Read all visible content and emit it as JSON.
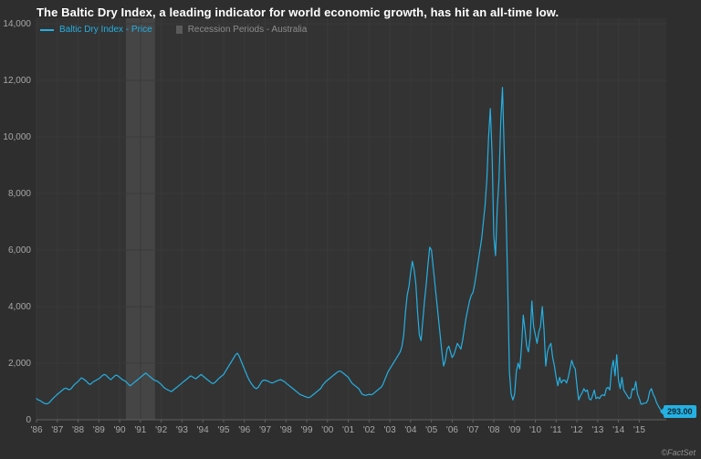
{
  "header": {
    "title": "The Baltic Dry Index, a leading indicator for world economic growth, has hit an all-time low."
  },
  "legend": {
    "price": {
      "label": "Baltic Dry Index - Price",
      "color": "#25b0e2"
    },
    "recession": {
      "label": "Recession Periods - Australia",
      "color": "#8d8d8d",
      "swatch_color": "#5a5a5a"
    }
  },
  "footer": {
    "credit": "©FactSet"
  },
  "chart_data": {
    "type": "line",
    "title": "The Baltic Dry Index, a leading indicator for world economic growth, has hit an all-time low.",
    "xlabel": "",
    "ylabel": "",
    "ylim": [
      0,
      14000
    ],
    "x_range": [
      1986,
      2016.3
    ],
    "grid": true,
    "legend_position": "top-left",
    "y_ticks": [
      0,
      2000,
      4000,
      6000,
      8000,
      10000,
      12000,
      14000
    ],
    "y_tick_labels": [
      "0",
      "2,000",
      "4,000",
      "6,000",
      "8,000",
      "10,000",
      "12,000",
      "14,000"
    ],
    "x_tick_labels": [
      "'86",
      "'87",
      "'88",
      "'89",
      "'90",
      "'91",
      "'92",
      "'93",
      "'94",
      "'95",
      "'96",
      "'97",
      "'98",
      "'99",
      "'00",
      "'01",
      "'02",
      "'03",
      "'04",
      "'05",
      "'06",
      "'07",
      "'08",
      "'09",
      "'10",
      "'11",
      "'12",
      "'13",
      "'14",
      "'15"
    ],
    "recession_bands": [
      {
        "from": 1990.3,
        "to": 1991.7,
        "label": "Recession Periods - Australia"
      }
    ],
    "last_value_label": "293.00",
    "last_value": 293,
    "colors": {
      "line": "#25b0e2",
      "band": "#454545",
      "grid": "#3a3a3a",
      "axis_line": "#606060",
      "axis_text": "#a8a8a8",
      "plot_background": "#333333",
      "background": "#2e2e2e",
      "badge_background": "#25b0e2",
      "badge_text": "#0a2730"
    },
    "series": [
      {
        "name": "Baltic Dry Index - Price",
        "start_year": 1986,
        "interval_months": 1,
        "values": [
          750,
          700,
          680,
          640,
          600,
          570,
          560,
          590,
          650,
          720,
          780,
          840,
          900,
          950,
          1000,
          1050,
          1100,
          1120,
          1080,
          1060,
          1100,
          1180,
          1250,
          1300,
          1350,
          1420,
          1480,
          1450,
          1400,
          1350,
          1280,
          1250,
          1300,
          1350,
          1380,
          1420,
          1450,
          1500,
          1560,
          1600,
          1580,
          1520,
          1460,
          1420,
          1480,
          1540,
          1580,
          1550,
          1500,
          1450,
          1400,
          1380,
          1320,
          1260,
          1200,
          1250,
          1300,
          1350,
          1400,
          1450,
          1500,
          1550,
          1600,
          1650,
          1600,
          1550,
          1500,
          1450,
          1400,
          1380,
          1350,
          1300,
          1250,
          1180,
          1120,
          1080,
          1050,
          1020,
          1000,
          1050,
          1100,
          1150,
          1200,
          1250,
          1300,
          1350,
          1400,
          1450,
          1500,
          1550,
          1520,
          1480,
          1450,
          1500,
          1550,
          1600,
          1550,
          1500,
          1450,
          1400,
          1350,
          1300,
          1280,
          1320,
          1380,
          1450,
          1500,
          1550,
          1600,
          1700,
          1800,
          1900,
          2000,
          2100,
          2200,
          2300,
          2350,
          2250,
          2100,
          1950,
          1800,
          1650,
          1500,
          1380,
          1280,
          1200,
          1130,
          1100,
          1150,
          1250,
          1350,
          1400,
          1400,
          1380,
          1350,
          1320,
          1300,
          1320,
          1350,
          1380,
          1400,
          1420,
          1380,
          1350,
          1300,
          1250,
          1200,
          1150,
          1100,
          1050,
          1000,
          950,
          900,
          870,
          850,
          820,
          800,
          780,
          800,
          850,
          900,
          950,
          1000,
          1050,
          1100,
          1200,
          1280,
          1350,
          1400,
          1450,
          1500,
          1550,
          1600,
          1650,
          1700,
          1720,
          1700,
          1650,
          1600,
          1550,
          1500,
          1400,
          1300,
          1250,
          1200,
          1150,
          1100,
          1000,
          900,
          880,
          860,
          880,
          900,
          880,
          900,
          950,
          1000,
          1050,
          1100,
          1150,
          1250,
          1400,
          1550,
          1700,
          1800,
          1900,
          2000,
          2100,
          2200,
          2300,
          2400,
          2600,
          3000,
          3800,
          4400,
          4700,
          5200,
          5600,
          5300,
          4800,
          3800,
          3000,
          2800,
          3500,
          4200,
          4800,
          5500,
          6100,
          6000,
          5400,
          4800,
          4200,
          3600,
          3000,
          2400,
          1900,
          2100,
          2500,
          2600,
          2400,
          2200,
          2300,
          2500,
          2700,
          2600,
          2500,
          2800,
          3200,
          3600,
          3900,
          4200,
          4400,
          4500,
          4800,
          5200,
          5600,
          6000,
          6400,
          7000,
          7600,
          8500,
          10000,
          11000,
          9400,
          6500,
          5800,
          7500,
          8500,
          10500,
          11750,
          9500,
          7500,
          4800,
          1700,
          900,
          700,
          900,
          1700,
          2000,
          1800,
          2600,
          3700,
          3200,
          2600,
          2400,
          2900,
          4200,
          3300,
          3000,
          2700,
          3100,
          3300,
          4000,
          3200,
          1900,
          2400,
          2600,
          2700,
          2200,
          1900,
          1500,
          1200,
          1500,
          1300,
          1400,
          1400,
          1300,
          1500,
          1800,
          2100,
          1900,
          1800,
          1200,
          700,
          850,
          950,
          1100,
          1000,
          1050,
          750,
          700,
          850,
          1050,
          750,
          800,
          750,
          850,
          880,
          850,
          1100,
          1150,
          1050,
          1800,
          2100,
          1550,
          2300,
          1400,
          1100,
          1500,
          1050,
          950,
          850,
          750,
          780,
          1100,
          1050,
          1350,
          900,
          750,
          550,
          560,
          590,
          590,
          700,
          1000,
          1100,
          900,
          780,
          600,
          480,
          380,
          293
        ]
      }
    ]
  }
}
